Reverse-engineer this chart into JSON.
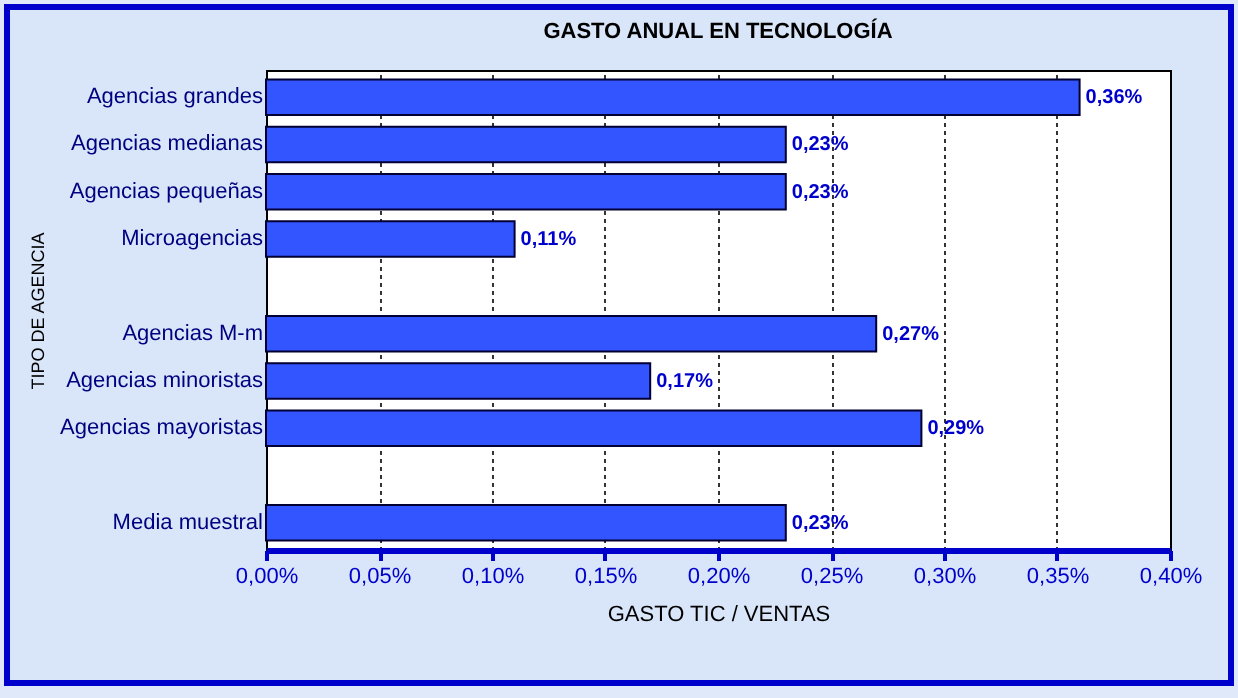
{
  "chart_data": {
    "type": "bar",
    "orientation": "horizontal",
    "title": "GASTO ANUAL EN TECNOLOGÍA",
    "xlabel": "GASTO TIC / VENTAS",
    "ylabel": "TIPO DE AGENCIA",
    "categories": [
      "Agencias grandes",
      "Agencias medianas",
      "Agencias pequeñas",
      "Microagencias",
      null,
      "Agencias M-m",
      "Agencias minoristas",
      "Agencias mayoristas",
      null,
      "Media muestral"
    ],
    "values": [
      0.36,
      0.23,
      0.23,
      0.11,
      null,
      0.27,
      0.17,
      0.29,
      null,
      0.23
    ],
    "value_labels": [
      "0,36%",
      "0,23%",
      "0,23%",
      "0,11%",
      null,
      "0,27%",
      "0,17%",
      "0,29%",
      null,
      "0,23%"
    ],
    "color": "#3355ff",
    "xlim": [
      0,
      0.4
    ],
    "xticks": [
      {
        "value": 0,
        "label": "0,00%"
      },
      {
        "value": 0.05,
        "label": "0,05%"
      },
      {
        "value": 0.1,
        "label": "0,10%"
      },
      {
        "value": 0.15,
        "label": "0,15%"
      },
      {
        "value": 0.2,
        "label": "0,20%"
      },
      {
        "value": 0.25,
        "label": "0,25%"
      },
      {
        "value": 0.3,
        "label": "0,30%"
      },
      {
        "value": 0.35,
        "label": "0,35%"
      },
      {
        "value": 0.4,
        "label": "0,40%"
      }
    ],
    "grid": "x"
  }
}
